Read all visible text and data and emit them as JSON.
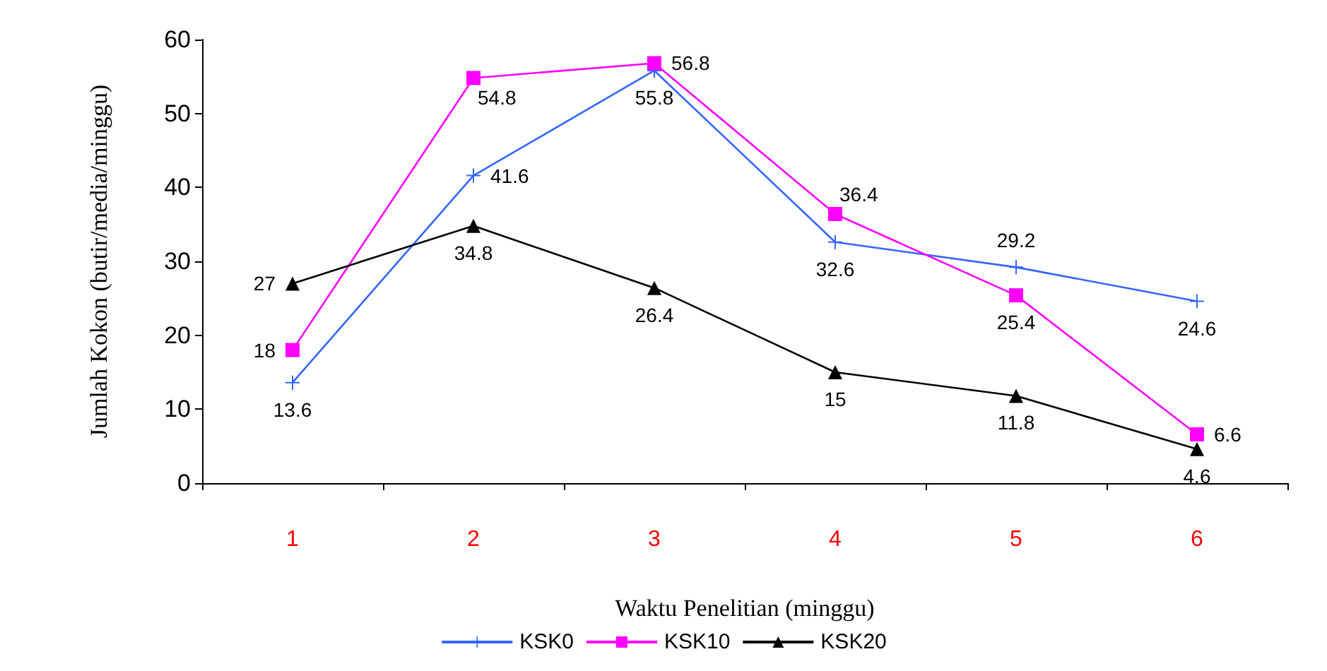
{
  "chart_data": {
    "type": "line",
    "xlabel": "Waktu Penelitian (minggu)",
    "ylabel": "Jumlah Kokon (butir/media/minggu)",
    "categories": [
      "1",
      "2",
      "3",
      "4",
      "5",
      "6"
    ],
    "series": [
      {
        "name": "KSK0",
        "color": "#3366ff",
        "marker": "cross",
        "values": [
          13.6,
          41.6,
          55.8,
          32.6,
          29.2,
          24.6
        ]
      },
      {
        "name": "KSK10",
        "color": "#ff00ff",
        "marker": "square",
        "values": [
          18,
          54.8,
          56.8,
          36.4,
          25.4,
          6.6
        ]
      },
      {
        "name": "KSK20",
        "color": "#000000",
        "marker": "triangle",
        "values": [
          27,
          34.8,
          26.4,
          15,
          11.8,
          4.6
        ]
      }
    ],
    "ylim": [
      0,
      60
    ],
    "yticks": [
      0,
      10,
      20,
      30,
      40,
      50,
      60
    ],
    "grid": false,
    "legend": "bottom",
    "data_labels": true,
    "line_style": "solid"
  }
}
